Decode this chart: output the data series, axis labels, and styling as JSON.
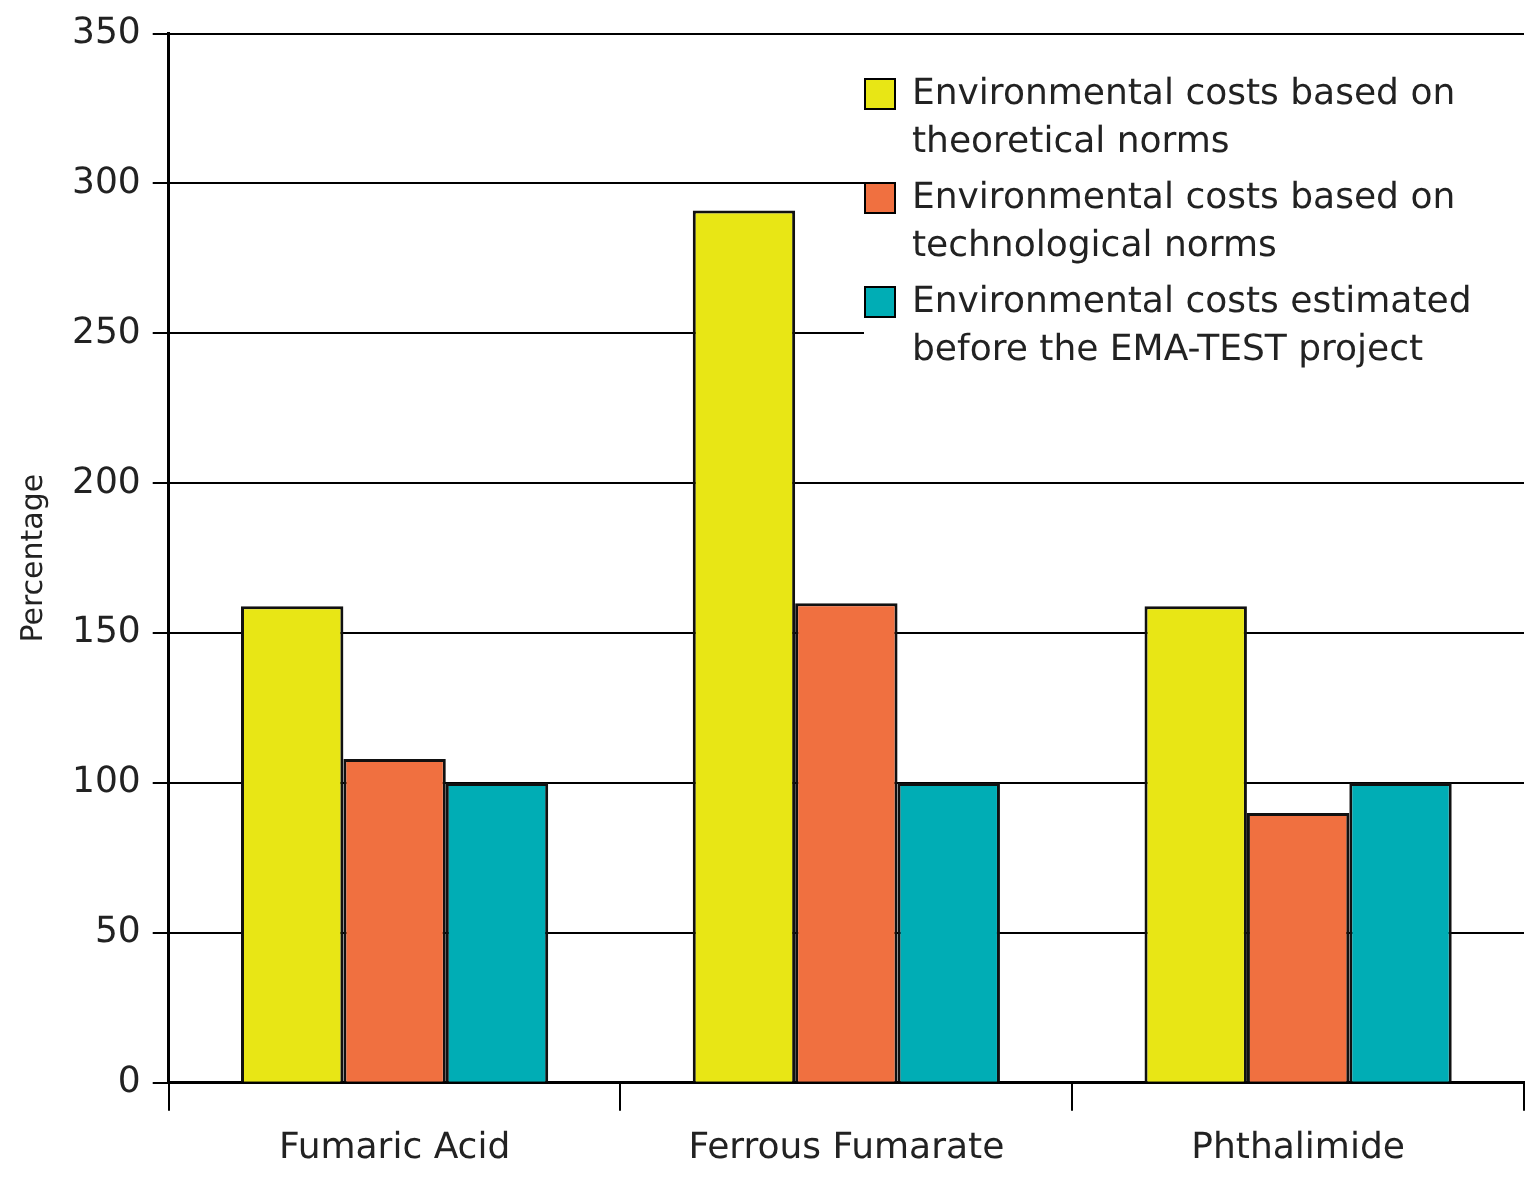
{
  "chart_data": {
    "type": "bar",
    "ylabel": "Percentage",
    "categories": [
      "Fumaric Acid",
      "Ferrous Fumarate",
      "Phthalimide"
    ],
    "series": [
      {
        "name": "Environmental costs based on theoretical norms",
        "color": "#e8e615",
        "values": [
          159,
          291,
          159
        ]
      },
      {
        "name": "Environmental costs based on technological norms",
        "color": "#f07040",
        "values": [
          108,
          160,
          90
        ]
      },
      {
        "name": "Environmental costs estimated before the EMA-TEST project",
        "color": "#00adb5",
        "values": [
          100,
          100,
          100
        ]
      }
    ],
    "ylim": [
      0,
      350
    ],
    "yticks": [
      0,
      50,
      100,
      150,
      200,
      250,
      300,
      350
    ],
    "grid": "y",
    "legend": "top right"
  }
}
